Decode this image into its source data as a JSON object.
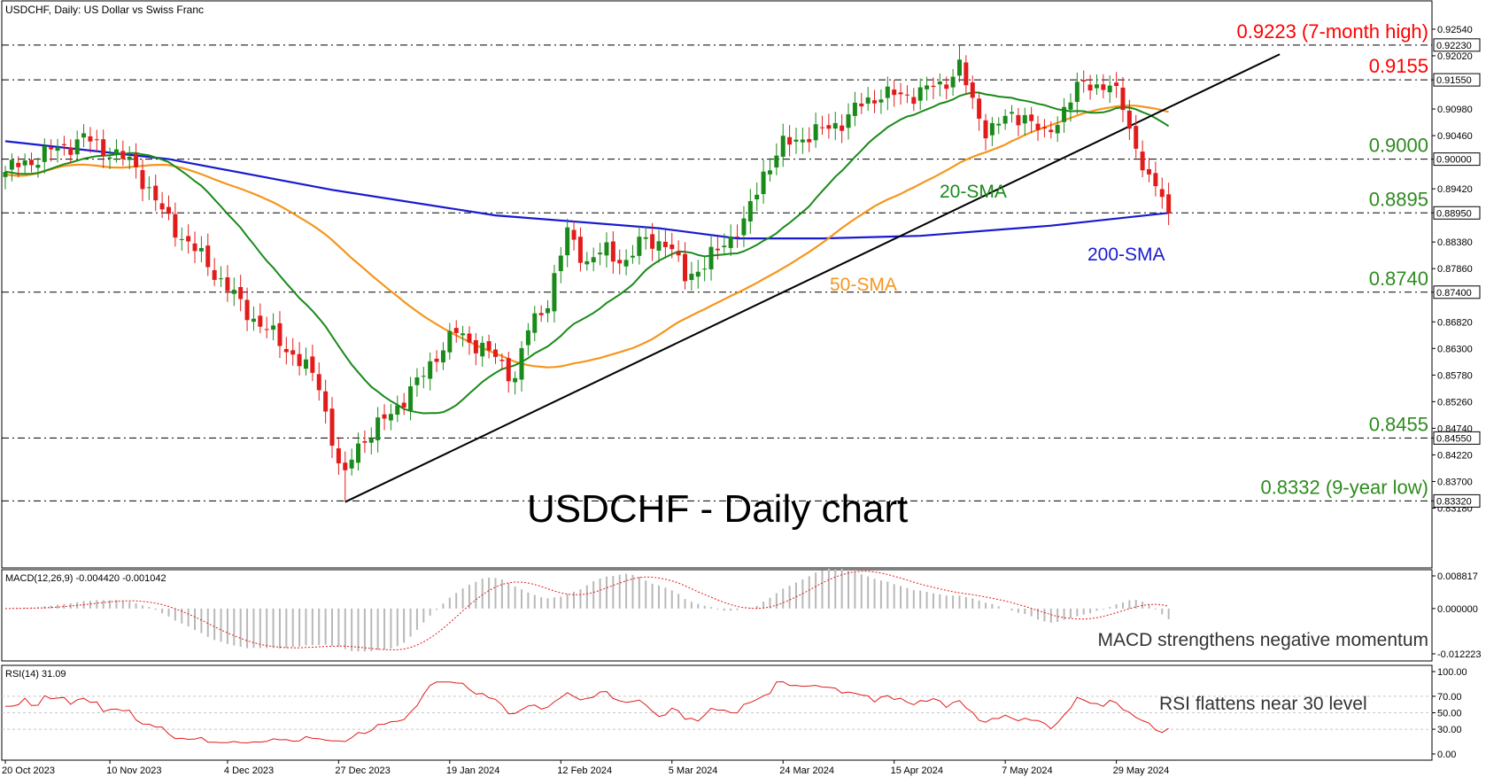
{
  "header": "USDCHF, Daily:  US Dollar vs Swiss Franc",
  "chart_data": [
    {
      "type": "candlestick",
      "title": "USDCHF - Daily chart",
      "ylim": [
        0.8305,
        0.9266
      ],
      "y_ticks": [
        "0.92540",
        "0.92020",
        "0.91550",
        "0.90980",
        "0.90460",
        "0.90000",
        "0.89420",
        "0.88950",
        "0.88380",
        "0.87860",
        "0.87400",
        "0.86820",
        "0.86300",
        "0.85780",
        "0.85260",
        "0.84740",
        "0.84550",
        "0.84220",
        "0.83700",
        "0.83320",
        "0.83180"
      ],
      "highlighted_ticks": [
        "0.92230",
        "0.91550",
        "0.90000",
        "0.88950",
        "0.87400",
        "0.84550",
        "0.83320"
      ],
      "levels": [
        {
          "value": 0.9223,
          "label": "0.9223 (7-month high)",
          "color": "#ff0000"
        },
        {
          "value": 0.9155,
          "label": "0.9155",
          "color": "#ff0000"
        },
        {
          "value": 0.9,
          "label": "0.9000",
          "color": "#2e8b1f"
        },
        {
          "value": 0.8895,
          "label": "0.8895",
          "color": "#2e8b1f"
        },
        {
          "value": 0.874,
          "label": "0.8740",
          "color": "#2e8b1f"
        },
        {
          "value": 0.8455,
          "label": "0.8455",
          "color": "#2e8b1f"
        },
        {
          "value": 0.8332,
          "label": "0.8332 (9-year low)",
          "color": "#2e8b1f"
        }
      ],
      "x_labels": [
        "20 Oct 2023",
        "10 Nov 2023",
        "4 Dec 2023",
        "27 Dec 2023",
        "19 Jan 2024",
        "12 Feb 2024",
        "5 Mar 2024",
        "24 Mar 2024",
        "15 Apr 2024",
        "7 May 2024",
        "29 May 2024"
      ],
      "close_anchors": [
        [
          0,
          0.8975
        ],
        [
          6,
          0.901
        ],
        [
          12,
          0.904
        ],
        [
          16,
          0.9015
        ],
        [
          20,
          0.8985
        ],
        [
          24,
          0.8895
        ],
        [
          28,
          0.8835
        ],
        [
          32,
          0.878
        ],
        [
          36,
          0.8715
        ],
        [
          40,
          0.8665
        ],
        [
          44,
          0.862
        ],
        [
          48,
          0.856
        ],
        [
          51,
          0.84
        ],
        [
          52,
          0.8395
        ],
        [
          54,
          0.8445
        ],
        [
          57,
          0.8475
        ],
        [
          60,
          0.852
        ],
        [
          63,
          0.856
        ],
        [
          66,
          0.862
        ],
        [
          69,
          0.866
        ],
        [
          72,
          0.864
        ],
        [
          75,
          0.861
        ],
        [
          78,
          0.8575
        ],
        [
          80,
          0.8665
        ],
        [
          83,
          0.8725
        ],
        [
          86,
          0.8855
        ],
        [
          89,
          0.88
        ],
        [
          92,
          0.882
        ],
        [
          95,
          0.88
        ],
        [
          98,
          0.8845
        ],
        [
          101,
          0.8835
        ],
        [
          104,
          0.8775
        ],
        [
          107,
          0.879
        ],
        [
          110,
          0.884
        ],
        [
          113,
          0.887
        ],
        [
          116,
          0.8975
        ],
        [
          119,
          0.9025
        ],
        [
          122,
          0.9045
        ],
        [
          125,
          0.9055
        ],
        [
          128,
          0.9075
        ],
        [
          131,
          0.9105
        ],
        [
          134,
          0.913
        ],
        [
          137,
          0.912
        ],
        [
          140,
          0.9135
        ],
        [
          143,
          0.914
        ],
        [
          146,
          0.9185
        ],
        [
          148,
          0.9105
        ],
        [
          150,
          0.906
        ],
        [
          153,
          0.9075
        ],
        [
          156,
          0.909
        ],
        [
          159,
          0.904
        ],
        [
          162,
          0.91
        ],
        [
          164,
          0.9135
        ],
        [
          166,
          0.915
        ],
        [
          169,
          0.914
        ],
        [
          171,
          0.9105
        ],
        [
          173,
          0.9025
        ],
        [
          175,
          0.895
        ],
        [
          177,
          0.8935
        ],
        [
          178,
          0.8895
        ]
      ],
      "overlays": [
        {
          "name": "20-SMA",
          "color": "#1a8a1a",
          "period": 20
        },
        {
          "name": "50-SMA",
          "color": "#f5961e",
          "period": 50
        },
        {
          "name": "200-SMA",
          "color": "#1a1ad0"
        }
      ],
      "sma200_path": [
        [
          0,
          0.9035
        ],
        [
          25,
          0.9
        ],
        [
          50,
          0.894
        ],
        [
          75,
          0.889
        ],
        [
          100,
          0.8865
        ],
        [
          112,
          0.8845
        ],
        [
          125,
          0.8845
        ],
        [
          140,
          0.885
        ],
        [
          160,
          0.887
        ],
        [
          178,
          0.8895
        ]
      ],
      "trendline": {
        "from": [
          52,
          0.833
        ],
        "to": [
          195,
          0.9205
        ],
        "color": "#000000"
      },
      "candle_colors": {
        "up": "#1a8a1a",
        "down": "#e21b1b"
      }
    },
    {
      "type": "bar",
      "title": "MACD(12,26,9) -0.004420 -0.001042",
      "ylim": [
        -0.012223,
        0.008817
      ],
      "y_ticks": [
        "0.008817",
        "0.000000",
        "-0.012223"
      ],
      "annotation": "MACD strengthens negative momentum"
    },
    {
      "type": "line",
      "title": "RSI(14) 31.09",
      "ylim": [
        0,
        100
      ],
      "y_ticks": [
        "100.00",
        "70.00",
        "50.00",
        "30.00",
        "0.00"
      ],
      "annotation": "RSI flattens near 30 level"
    }
  ]
}
